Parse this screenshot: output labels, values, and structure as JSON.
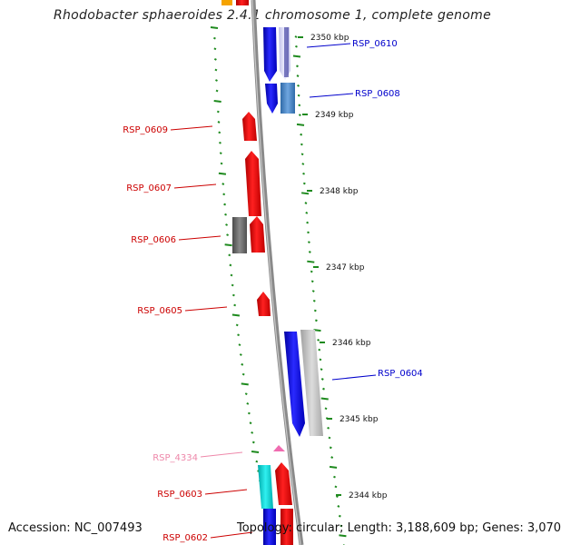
{
  "title": "Rhodobacter sphaeroides 2.4.1 chromosome 1, complete genome",
  "footer": {
    "accession": "Accession: NC_007493",
    "summary": "Topology: circular; Length: 3,188,609 bp; Genes: 3,070"
  },
  "scale_ticks": [
    {
      "label": "2350 kbp",
      "value_kbp": 2350
    },
    {
      "label": "2349 kbp",
      "value_kbp": 2349
    },
    {
      "label": "2348 kbp",
      "value_kbp": 2348
    },
    {
      "label": "2347 kbp",
      "value_kbp": 2347
    },
    {
      "label": "2346 kbp",
      "value_kbp": 2346
    },
    {
      "label": "2345 kbp",
      "value_kbp": 2345
    },
    {
      "label": "2344 kbp",
      "value_kbp": 2344
    }
  ],
  "genes": [
    {
      "label": "RSP_0610",
      "strand": "forward",
      "color": "#0000cc"
    },
    {
      "label": "RSP_0608",
      "strand": "forward",
      "color": "#0000cc"
    },
    {
      "label": "RSP_0609",
      "strand": "reverse",
      "color": "#cc0000"
    },
    {
      "label": "RSP_0607",
      "strand": "reverse",
      "color": "#cc0000"
    },
    {
      "label": "RSP_0606",
      "strand": "reverse",
      "color": "#cc0000"
    },
    {
      "label": "RSP_0605",
      "strand": "reverse",
      "color": "#cc0000"
    },
    {
      "label": "RSP_0604",
      "strand": "forward",
      "color": "#0000cc"
    },
    {
      "label": "RSP_4334",
      "strand": "reverse",
      "color": "#ee88aa"
    },
    {
      "label": "RSP_0603",
      "strand": "reverse",
      "color": "#cc0000"
    },
    {
      "label": "RSP_0602",
      "strand": "reverse",
      "color": "#cc0000"
    }
  ]
}
